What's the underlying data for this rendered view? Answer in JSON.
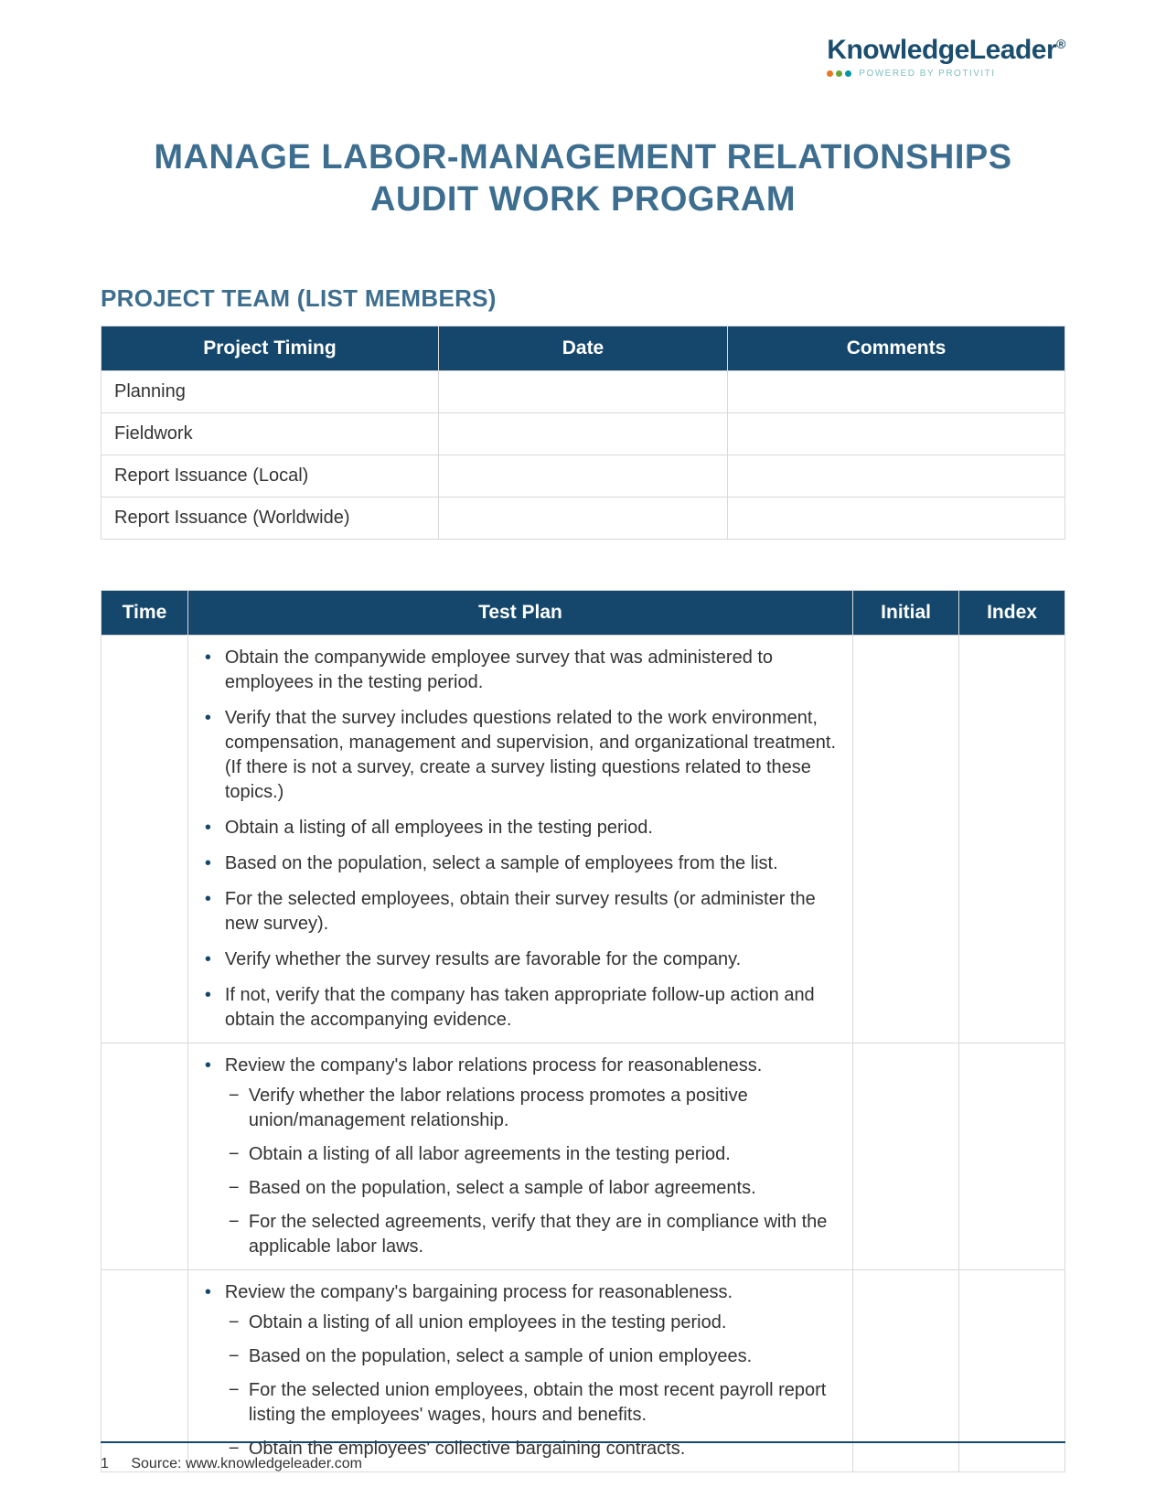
{
  "logo": {
    "brand": "KnowledgeLeader",
    "reg": "®",
    "tagline": "POWERED BY PROTIVITI"
  },
  "title": "MANAGE LABOR-MANAGEMENT RELATIONSHIPS AUDIT WORK PROGRAM",
  "section_heading": "PROJECT TEAM (LIST MEMBERS)",
  "timing_table": {
    "headers": [
      "Project Timing",
      "Date",
      "Comments"
    ],
    "rows": [
      [
        "Planning",
        "",
        ""
      ],
      [
        "Fieldwork",
        "",
        ""
      ],
      [
        "Report Issuance (Local)",
        "",
        ""
      ],
      [
        "Report Issuance (Worldwide)",
        "",
        ""
      ]
    ]
  },
  "test_table": {
    "headers": [
      "Time",
      "Test Plan",
      "Initial",
      "Index"
    ],
    "rows": [
      {
        "time": "",
        "initial": "",
        "index": "",
        "bullets": [
          "Obtain the companywide employee survey that was administered to employees in the testing period.",
          "Verify that the survey includes questions related to the work environment, compensation, management and supervision, and organizational treatment. (If there is not a survey, create a survey listing questions related to these topics.)",
          "Obtain a listing of all employees in the testing period.",
          "Based on the population, select a sample of employees from the list.",
          "For the selected employees, obtain their survey results (or administer the new survey).",
          "Verify whether the survey results are favorable for the company.",
          "If not, verify that the company has taken appropriate follow-up action and obtain the accompanying evidence."
        ]
      },
      {
        "time": "",
        "initial": "",
        "index": "",
        "bullets_lead": "Review the company's labor relations process for reasonableness.",
        "dashes": [
          "Verify whether the labor relations process promotes a positive union/management relationship.",
          "Obtain a listing of all labor agreements in the testing period.",
          "Based on the population, select a sample of labor agreements.",
          "For the selected agreements, verify that they are in compliance with the applicable labor laws."
        ]
      },
      {
        "time": "",
        "initial": "",
        "index": "",
        "bullets_lead": "Review the company's bargaining process for reasonableness.",
        "dashes": [
          "Obtain a listing of all union employees in the testing period.",
          "Based on the population, select a sample of union employees.",
          "For the selected union employees, obtain the most recent payroll report listing the employees' wages, hours and benefits.",
          "Obtain the employees' collective bargaining contracts."
        ]
      }
    ]
  },
  "footer": {
    "page": "1",
    "source": "Source: www.knowledgeleader.com"
  },
  "colors": {
    "header_bg": "#14476b",
    "title_color": "#3d6e8f",
    "border": "#d9d9d9"
  }
}
